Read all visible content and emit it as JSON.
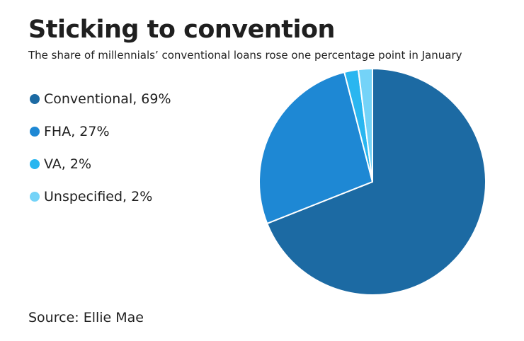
{
  "chart_data": {
    "type": "pie",
    "title": "Sticking to convention",
    "subtitle": "The share of millennials’ conventional loans rose one percentage point in January",
    "source": "Source: Ellie Mae",
    "slices": [
      {
        "name": "Conventional",
        "value": 69,
        "label": "Conventional, 69%",
        "color": "#1c6aa3"
      },
      {
        "name": "FHA",
        "value": 27,
        "label": "FHA, 27%",
        "color": "#1e88d4"
      },
      {
        "name": "VA",
        "value": 2,
        "label": "VA, 2%",
        "color": "#29b6f0"
      },
      {
        "name": "Unspecified",
        "value": 2,
        "label": "Unspecified, 2%",
        "color": "#74d3f8"
      }
    ],
    "legend_position": "left",
    "start_direction": "top",
    "clockwise": true
  }
}
